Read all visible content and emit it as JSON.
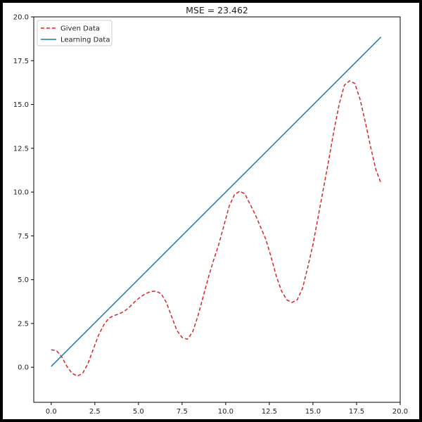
{
  "chart_data": {
    "type": "line",
    "title": "MSE = 23.462",
    "xlabel": "",
    "ylabel": "",
    "xlim": [
      -1.0,
      20.0
    ],
    "ylim": [
      -2.0,
      20.0
    ],
    "x_ticks": [
      0.0,
      2.5,
      5.0,
      7.5,
      10.0,
      12.5,
      15.0,
      17.5,
      20.0
    ],
    "x_tick_labels": [
      "0.0",
      "2.5",
      "5.0",
      "7.5",
      "10.0",
      "12.5",
      "15.0",
      "17.5",
      "20.0"
    ],
    "y_ticks": [
      0.0,
      2.5,
      5.0,
      7.5,
      10.0,
      12.5,
      15.0,
      17.5,
      20.0
    ],
    "y_tick_labels": [
      "0.0",
      "2.5",
      "5.0",
      "7.5",
      "10.0",
      "12.5",
      "15.0",
      "17.5",
      "20.0"
    ],
    "grid": false,
    "legend": "top-left",
    "series": [
      {
        "name": "Given Data",
        "style": "dashed",
        "color": "#d62728",
        "x": [
          0.0,
          0.3,
          0.6,
          0.9,
          1.2,
          1.5,
          1.8,
          2.1,
          2.4,
          2.7,
          3.0,
          3.3,
          3.6,
          3.9,
          4.2,
          4.5,
          4.8,
          5.1,
          5.4,
          5.7,
          6.0,
          6.3,
          6.6,
          6.9,
          7.2,
          7.5,
          7.8,
          8.1,
          8.4,
          8.7,
          9.0,
          9.3,
          9.6,
          9.9,
          10.2,
          10.5,
          10.8,
          11.1,
          11.4,
          11.7,
          12.0,
          12.3,
          12.6,
          12.9,
          13.2,
          13.5,
          13.8,
          14.1,
          14.4,
          14.7,
          15.0,
          15.3,
          15.6,
          15.9,
          16.2,
          16.5,
          16.8,
          17.1,
          17.4,
          17.7,
          18.0,
          18.3,
          18.6,
          18.9
        ],
        "y": [
          1.0,
          0.95,
          0.6,
          0.05,
          -0.35,
          -0.5,
          -0.35,
          0.2,
          1.0,
          1.8,
          2.4,
          2.8,
          2.95,
          3.05,
          3.2,
          3.45,
          3.75,
          4.0,
          4.2,
          4.32,
          4.35,
          4.2,
          3.7,
          2.9,
          2.1,
          1.7,
          1.6,
          2.0,
          2.9,
          4.0,
          5.1,
          6.1,
          7.0,
          8.1,
          9.2,
          9.85,
          10.05,
          9.9,
          9.3,
          8.7,
          8.0,
          7.3,
          6.3,
          5.2,
          4.35,
          3.85,
          3.7,
          3.85,
          4.5,
          5.7,
          7.0,
          8.6,
          10.2,
          11.8,
          13.5,
          15.0,
          16.1,
          16.35,
          16.2,
          15.3,
          14.0,
          12.6,
          11.3,
          10.5
        ]
      },
      {
        "name": "Learning Data",
        "style": "solid",
        "color": "#1f77b4",
        "x": [
          0.0,
          18.9
        ],
        "y": [
          0.05,
          18.85
        ]
      }
    ]
  }
}
